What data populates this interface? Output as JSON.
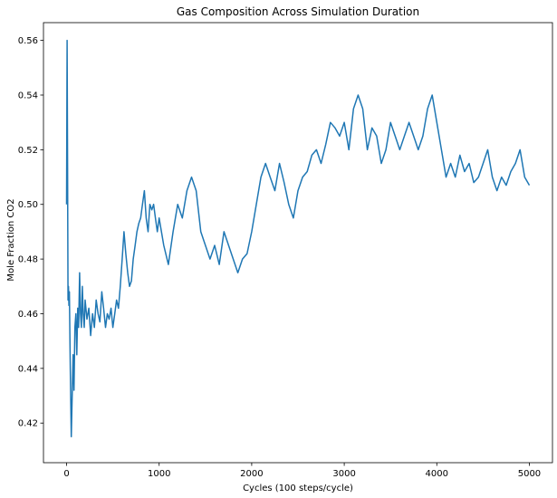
{
  "chart_data": {
    "type": "line",
    "title": "Gas Composition Across Simulation Duration",
    "xlabel": "Cycles (100 steps/cycle)",
    "ylabel": "Mole Fraction CO2",
    "xlim": [
      -250,
      5250
    ],
    "ylim": [
      0.4055,
      0.5665
    ],
    "xticks": [
      0,
      1000,
      2000,
      3000,
      4000,
      5000
    ],
    "xtick_labels": [
      "0",
      "1000",
      "2000",
      "3000",
      "4000",
      "5000"
    ],
    "yticks": [
      0.42,
      0.44,
      0.46,
      0.48,
      0.5,
      0.52,
      0.54,
      0.56
    ],
    "ytick_labels": [
      "0.42",
      "0.44",
      "0.46",
      "0.48",
      "0.50",
      "0.52",
      "0.54",
      "0.56"
    ],
    "grid": false,
    "legend": "none",
    "colors": {
      "series": "#1f77b4",
      "axes": "#000000",
      "background": "#ffffff"
    },
    "series": [
      {
        "x": [
          0,
          5,
          10,
          15,
          20,
          25,
          30,
          40,
          50,
          60,
          70,
          80,
          90,
          100,
          110,
          120,
          130,
          140,
          150,
          160,
          170,
          180,
          190,
          200,
          220,
          240,
          260,
          280,
          300,
          320,
          340,
          360,
          380,
          400,
          420,
          440,
          460,
          480,
          500,
          520,
          540,
          560,
          580,
          600,
          620,
          640,
          660,
          680,
          700,
          720,
          740,
          760,
          780,
          800,
          820,
          840,
          860,
          880,
          900,
          920,
          940,
          960,
          980,
          1000,
          1050,
          1100,
          1150,
          1200,
          1250,
          1300,
          1350,
          1400,
          1450,
          1500,
          1550,
          1600,
          1650,
          1700,
          1750,
          1800,
          1850,
          1900,
          1950,
          2000,
          2050,
          2100,
          2150,
          2200,
          2250,
          2300,
          2350,
          2400,
          2450,
          2500,
          2550,
          2600,
          2650,
          2700,
          2750,
          2800,
          2850,
          2900,
          2950,
          3000,
          3050,
          3100,
          3150,
          3200,
          3250,
          3300,
          3350,
          3400,
          3450,
          3500,
          3550,
          3600,
          3650,
          3700,
          3750,
          3800,
          3850,
          3900,
          3950,
          4000,
          4050,
          4100,
          4150,
          4200,
          4250,
          4300,
          4350,
          4400,
          4450,
          4500,
          4550,
          4600,
          4650,
          4700,
          4750,
          4800,
          4850,
          4900,
          4950,
          5000
        ],
        "y": [
          0.5,
          0.56,
          0.515,
          0.465,
          0.47,
          0.463,
          0.468,
          0.44,
          0.415,
          0.43,
          0.445,
          0.432,
          0.455,
          0.46,
          0.445,
          0.462,
          0.455,
          0.475,
          0.46,
          0.455,
          0.47,
          0.46,
          0.455,
          0.465,
          0.458,
          0.462,
          0.452,
          0.46,
          0.455,
          0.465,
          0.46,
          0.457,
          0.468,
          0.462,
          0.455,
          0.46,
          0.458,
          0.462,
          0.455,
          0.46,
          0.465,
          0.462,
          0.47,
          0.48,
          0.49,
          0.482,
          0.475,
          0.47,
          0.472,
          0.48,
          0.485,
          0.49,
          0.493,
          0.495,
          0.5,
          0.505,
          0.495,
          0.49,
          0.5,
          0.498,
          0.5,
          0.495,
          0.49,
          0.495,
          0.485,
          0.478,
          0.49,
          0.5,
          0.495,
          0.505,
          0.51,
          0.505,
          0.49,
          0.485,
          0.48,
          0.485,
          0.478,
          0.49,
          0.485,
          0.48,
          0.475,
          0.48,
          0.482,
          0.49,
          0.5,
          0.51,
          0.515,
          0.51,
          0.505,
          0.515,
          0.508,
          0.5,
          0.495,
          0.505,
          0.51,
          0.512,
          0.518,
          0.52,
          0.515,
          0.522,
          0.53,
          0.528,
          0.525,
          0.53,
          0.52,
          0.535,
          0.54,
          0.535,
          0.52,
          0.528,
          0.525,
          0.515,
          0.52,
          0.53,
          0.525,
          0.52,
          0.525,
          0.53,
          0.525,
          0.52,
          0.525,
          0.535,
          0.54,
          0.53,
          0.52,
          0.51,
          0.515,
          0.51,
          0.518,
          0.512,
          0.515,
          0.508,
          0.51,
          0.515,
          0.52,
          0.51,
          0.505,
          0.51,
          0.507,
          0.512,
          0.515,
          0.52,
          0.51,
          0.507
        ]
      }
    ]
  }
}
